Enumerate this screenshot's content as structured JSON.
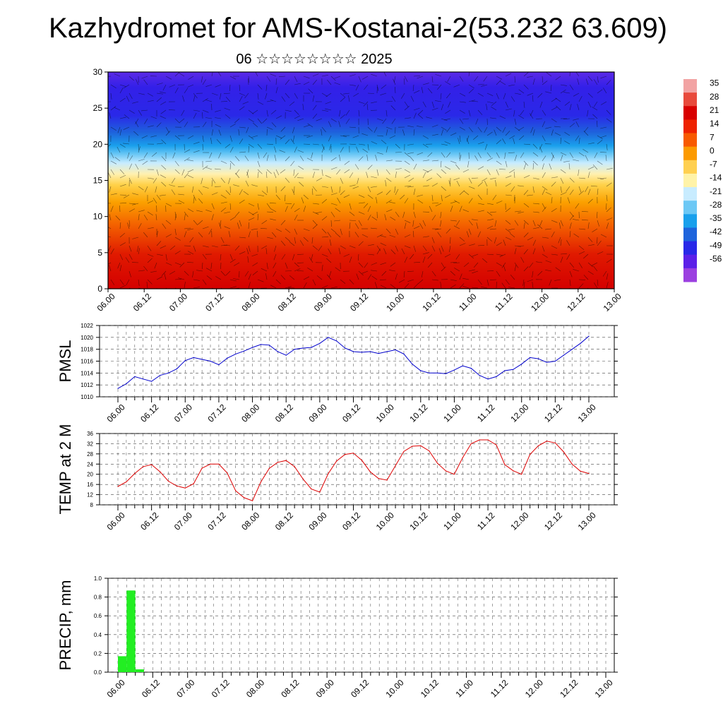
{
  "title": "Kazhydromet for AMS-Kostanai-2(53.232 63.609)",
  "subtitle": "06 ☆☆☆☆☆☆☆☆ 2025",
  "time_ticks": [
    "06.00",
    "06.12",
    "07.00",
    "07.12",
    "08.00",
    "08.12",
    "09.00",
    "09.12",
    "10.00",
    "10.12",
    "11.00",
    "11.12",
    "12.00",
    "12.12",
    "13.00"
  ],
  "colorbar": {
    "labels": [
      "35",
      "28",
      "21",
      "14",
      "7",
      "0",
      "-7",
      "-14",
      "-21",
      "-28",
      "-35",
      "-42",
      "-49",
      "-56"
    ],
    "colors": [
      "#f2a3a3",
      "#e84a3c",
      "#d80000",
      "#ee2200",
      "#f85a00",
      "#fc9a00",
      "#ffd050",
      "#fff3a8",
      "#c8ecff",
      "#6cc8f5",
      "#19a0ec",
      "#1e64dc",
      "#2828e8",
      "#5c20e8",
      "#9b40e0"
    ]
  },
  "chart_data": [
    {
      "type": "heatmap",
      "title": "",
      "ylim": [
        0,
        30
      ],
      "yticks": [
        "0",
        "5",
        "10",
        "15",
        "20",
        "25",
        "30"
      ],
      "description_values": "temperature vs height (0-30) and time, with wind barbs",
      "levels": [
        35,
        28,
        21,
        14,
        7,
        0,
        -7,
        -14,
        -21,
        -28,
        -35,
        -42,
        -49,
        -56
      ]
    },
    {
      "type": "line",
      "ylabel": "PMSL",
      "ylim": [
        1010,
        1022
      ],
      "yticks": [
        "1010",
        "1012",
        "1014",
        "1016",
        "1018",
        "1020",
        "1022"
      ],
      "series_color": "#0000cc",
      "values": [
        1011.4,
        1012.2,
        1013.4,
        1013.0,
        1012.6,
        1013.6,
        1014.0,
        1014.7,
        1016.1,
        1016.6,
        1016.3,
        1016.0,
        1015.4,
        1016.5,
        1017.2,
        1017.7,
        1018.3,
        1018.8,
        1018.7,
        1017.6,
        1017.0,
        1018.0,
        1018.2,
        1018.3,
        1019.0,
        1020.0,
        1019.4,
        1018.2,
        1017.6,
        1017.5,
        1017.6,
        1017.3,
        1017.6,
        1017.9,
        1017.2,
        1015.5,
        1014.4,
        1014.0,
        1014.0,
        1013.9,
        1014.5,
        1015.2,
        1014.8,
        1013.6,
        1013.0,
        1013.4,
        1014.4,
        1014.6,
        1015.5,
        1016.6,
        1016.4,
        1015.8,
        1016.0,
        1017.0,
        1018.0,
        1019.0,
        1020.2
      ]
    },
    {
      "type": "line",
      "ylabel": "TEMP at 2 M",
      "ylim": [
        8,
        36
      ],
      "yticks": [
        "8",
        "12",
        "16",
        "20",
        "24",
        "28",
        "32",
        "36"
      ],
      "series_color": "#dd0000",
      "values": [
        15.2,
        17.0,
        20.3,
        23.0,
        23.8,
        21.0,
        17.3,
        15.4,
        14.6,
        16.3,
        22.4,
        24.0,
        24.0,
        20.5,
        13.5,
        10.8,
        9.6,
        17.0,
        22.3,
        24.7,
        25.4,
        23.0,
        18.2,
        14.2,
        13.0,
        20.2,
        25.2,
        27.8,
        28.3,
        25.5,
        21.0,
        18.3,
        17.7,
        23.4,
        29.0,
        31.0,
        31.2,
        29.2,
        24.3,
        21.3,
        20.0,
        26.5,
        32.0,
        33.5,
        33.5,
        31.5,
        23.8,
        21.4,
        20.0,
        27.8,
        31.2,
        33.0,
        32.3,
        28.8,
        24.0,
        21.2,
        20.3
      ]
    },
    {
      "type": "bar",
      "ylabel": "PRECIP, mm",
      "ylim": [
        0.0,
        1.0
      ],
      "yticks": [
        "0.0",
        "0.2",
        "0.4",
        "0.6",
        "0.8",
        "1.0"
      ],
      "series_color": "#22ee22",
      "values": [
        0.17,
        0.87,
        0.03
      ]
    }
  ]
}
